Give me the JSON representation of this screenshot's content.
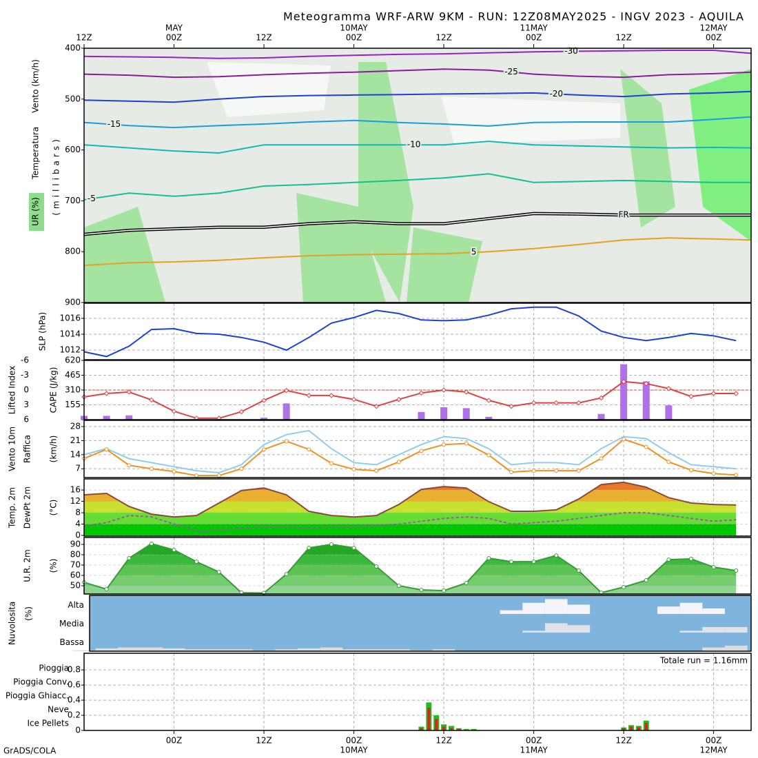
{
  "title": "Meteogramma WRF-ARW 9KM - RUN: 12Z08MAY2025 - INGV 2023 - AQUILA",
  "credit": "GrADS/COLA",
  "time_axis": {
    "xlim": [
      0,
      89
    ],
    "top_ticks": [
      {
        "value": 0,
        "label": "12Z"
      },
      {
        "value": 12,
        "label": "00Z",
        "date": "MAY"
      },
      {
        "value": 24,
        "label": "12Z"
      },
      {
        "value": 36,
        "label": "00Z",
        "date": "10MAY"
      },
      {
        "value": 48,
        "label": "12Z"
      },
      {
        "value": 60,
        "label": "00Z",
        "date": "11MAY"
      },
      {
        "value": 72,
        "label": "12Z"
      },
      {
        "value": 84,
        "label": "00Z",
        "date": "12MAY"
      }
    ],
    "bottom_ticks": [
      {
        "value": 12,
        "label": "00Z"
      },
      {
        "value": 24,
        "label": "12Z"
      },
      {
        "value": 36,
        "label": "00Z",
        "date": "10MAY"
      },
      {
        "value": 48,
        "label": "12Z"
      },
      {
        "value": 60,
        "label": "00Z",
        "date": "11MAY"
      },
      {
        "value": 72,
        "label": "12Z"
      },
      {
        "value": 84,
        "label": "00Z",
        "date": "12MAY"
      }
    ]
  },
  "chart_data": [
    {
      "type": "line",
      "ylabels": [
        "Vento (km/h)",
        "Temperatura",
        "UR (%)"
      ],
      "unit_label": "(millibars)",
      "ylim": [
        900,
        400
      ],
      "yticks": [
        400,
        500,
        600,
        700,
        800,
        900
      ],
      "grid": false,
      "x": [
        0,
        6,
        12,
        18,
        24,
        30,
        36,
        42,
        48,
        54,
        60,
        66,
        72,
        78,
        84,
        89
      ],
      "series": [
        {
          "name": "-30",
          "color": "#9a1ecc",
          "values": [
            416,
            417,
            418,
            420,
            419,
            416,
            414,
            412,
            411,
            409,
            407,
            406,
            405,
            404,
            404,
            410
          ]
        },
        {
          "name": "-25",
          "color": "#8a1a9e",
          "values": [
            451,
            453,
            457,
            456,
            452,
            449,
            447,
            444,
            441,
            443,
            451,
            455,
            457,
            452,
            450,
            447
          ]
        },
        {
          "name": "-20",
          "color": "#1e3fd6",
          "values": [
            502,
            504,
            506,
            500,
            495,
            493,
            492,
            491,
            490,
            489,
            488,
            492,
            495,
            490,
            488,
            485
          ]
        },
        {
          "name": "-15",
          "color": "#1a9be0",
          "values": [
            546,
            552,
            556,
            552,
            549,
            545,
            542,
            546,
            549,
            553,
            546,
            545,
            545,
            545,
            540,
            535
          ]
        },
        {
          "name": "-10",
          "color": "#12b8b8",
          "values": [
            590,
            596,
            602,
            606,
            590,
            590,
            590,
            590,
            590,
            583,
            590,
            592,
            594,
            596,
            595,
            596
          ]
        },
        {
          "name": "-5",
          "color": "#14c08c",
          "values": [
            698,
            685,
            691,
            685,
            671,
            668,
            664,
            660,
            655,
            647,
            664,
            662,
            660,
            662,
            664,
            664
          ]
        },
        {
          "name": "FR",
          "color": "#000000",
          "double": true,
          "values": [
            766,
            758,
            755,
            752,
            752,
            745,
            741,
            745,
            745,
            735,
            725,
            726,
            728,
            728,
            728,
            728
          ]
        },
        {
          "name": "5",
          "color": "#e8a020",
          "values": [
            827,
            822,
            820,
            817,
            812,
            808,
            806,
            805,
            804,
            800,
            794,
            786,
            777,
            773,
            775,
            777
          ]
        }
      ]
    },
    {
      "type": "line",
      "ylim": [
        1010.8,
        1017.9
      ],
      "yticks": [
        1012,
        1014,
        1016
      ],
      "grid": true,
      "x": [
        0,
        3,
        6,
        9,
        12,
        15,
        18,
        21,
        24,
        27,
        30,
        33,
        36,
        39,
        42,
        45,
        48,
        51,
        54,
        57,
        60,
        63,
        66,
        69,
        72,
        75,
        78,
        81,
        84,
        87
      ],
      "series": [
        {
          "name": "SLP (hPa)",
          "color": "#1e3fd6",
          "values": [
            1011.8,
            1011.2,
            1012.5,
            1014.6,
            1014.7,
            1014.1,
            1014.0,
            1013.6,
            1013.0,
            1012.0,
            1013.6,
            1015.4,
            1016.1,
            1017.0,
            1016.6,
            1015.8,
            1015.7,
            1015.8,
            1016.4,
            1017.2,
            1017.4,
            1017.4,
            1016.3,
            1014.4,
            1013.6,
            1013.2,
            1013.6,
            1014.1,
            1013.8,
            1013.2
          ]
        }
      ]
    },
    {
      "type": "bar_line",
      "ylim": [
        6,
        -6
      ],
      "yticks": [
        -6,
        -3,
        0,
        3,
        6
      ],
      "y2lim": [
        0,
        620
      ],
      "y2ticks": [
        155,
        310,
        465,
        620
      ],
      "li_reference": 0,
      "grid": true,
      "x": [
        0,
        3,
        6,
        9,
        12,
        15,
        18,
        21,
        24,
        27,
        30,
        33,
        36,
        39,
        42,
        45,
        48,
        51,
        54,
        57,
        60,
        63,
        66,
        69,
        72,
        75,
        78,
        81,
        84,
        87
      ],
      "series": [
        {
          "name": "Lifted Index",
          "color": "#e04040",
          "marker": "diamond",
          "values": [
            1.4,
            0.7,
            0.4,
            2.0,
            4.3,
            5.7,
            5.7,
            4.4,
            2.1,
            0.1,
            1.1,
            1.1,
            1.9,
            3.3,
            1.9,
            0.6,
            0,
            0.4,
            2.1,
            3.3,
            2.6,
            2.6,
            2.6,
            1.6,
            -1.7,
            -1.3,
            -0.3,
            1.3,
            0.7,
            0.7
          ]
        },
        {
          "name": "CAPE (J/kg)",
          "color": "#b070e8",
          "axis": "y2",
          "values": [
            40,
            40,
            45,
            0,
            0,
            0,
            0,
            0,
            20,
            170,
            0,
            0,
            0,
            0,
            0,
            80,
            130,
            120,
            30,
            0,
            0,
            0,
            0,
            60,
            580,
            400,
            150,
            0,
            0,
            0
          ]
        }
      ]
    },
    {
      "type": "line",
      "unit_label": "(km/h)",
      "ylim": [
        2.6,
        31.1
      ],
      "yticks": [
        7,
        14,
        21,
        28
      ],
      "grid": true,
      "x": [
        0,
        3,
        6,
        9,
        12,
        15,
        18,
        21,
        24,
        27,
        30,
        33,
        36,
        39,
        42,
        45,
        48,
        51,
        54,
        57,
        60,
        63,
        66,
        69,
        72,
        75,
        78,
        81,
        84,
        87
      ],
      "series": [
        {
          "name": "Raffica",
          "color": "#90ccee",
          "values": [
            14,
            17,
            12,
            10,
            8,
            6,
            5,
            9,
            19,
            24,
            26,
            17,
            10,
            9,
            14,
            19,
            23,
            22,
            17,
            9,
            10,
            10,
            9,
            17,
            23,
            22,
            15,
            9,
            8,
            7
          ]
        },
        {
          "name": "Vento 10m",
          "color": "#f09020",
          "marker": "circle",
          "values": [
            12.1,
            16.6,
            8.7,
            7.0,
            5.6,
            3.6,
            3.6,
            7.0,
            16.6,
            20.7,
            16.6,
            9.7,
            6.7,
            6.0,
            10.4,
            15.9,
            19.0,
            19.6,
            13.8,
            5.3,
            6.0,
            6.0,
            6.0,
            12.1,
            21.7,
            17.9,
            10.4,
            6.3,
            4.6,
            3.9
          ]
        }
      ]
    },
    {
      "type": "area",
      "unit_label": "(°C)",
      "ylim": [
        -0.25,
        19.9
      ],
      "yticks": [
        0,
        4,
        8,
        12,
        16
      ],
      "grid": true,
      "band_colors": [
        "#00c800",
        "#00c800",
        "#66dd33",
        "#c8e030",
        "#e8b030",
        "#e87828"
      ],
      "x": [
        0,
        3,
        6,
        9,
        12,
        15,
        18,
        21,
        24,
        27,
        30,
        33,
        36,
        39,
        42,
        45,
        48,
        51,
        54,
        57,
        60,
        63,
        66,
        69,
        72,
        75,
        78,
        81,
        84,
        87
      ],
      "series": [
        {
          "name": "Temp. 2m",
          "color": "#8a4a3a",
          "values": [
            14.3,
            14.8,
            10.2,
            7.5,
            6.5,
            7.0,
            11.4,
            15.8,
            16.7,
            14.3,
            8.5,
            7.0,
            6.5,
            7.0,
            10.9,
            16.2,
            17.2,
            16.7,
            11.9,
            8.5,
            8.5,
            9.0,
            12.8,
            17.9,
            18.7,
            17.0,
            13.3,
            11.4,
            10.9,
            10.7
          ]
        },
        {
          "name": "DewPt 2m",
          "color": "#9a5aa0",
          "dash": true,
          "values": [
            3.3,
            4.5,
            7,
            6.5,
            4,
            1.5,
            2,
            2.5,
            3,
            3,
            2.5,
            3,
            3,
            3.5,
            4,
            5,
            6,
            6.5,
            6,
            4,
            4.5,
            5,
            6,
            7,
            8,
            8,
            7,
            6,
            5,
            5.5
          ]
        }
      ]
    },
    {
      "type": "area",
      "unit_label": "(%)",
      "ylim": [
        42,
        96.7
      ],
      "yticks": [
        50,
        60,
        70,
        80,
        90
      ],
      "grid": true,
      "band_colors": [
        "#8fd48f",
        "#78cc70",
        "#5cc452",
        "#3cb83c",
        "#22a822",
        "#119911"
      ],
      "x": [
        0,
        3,
        6,
        9,
        12,
        15,
        18,
        21,
        24,
        27,
        30,
        33,
        36,
        39,
        42,
        45,
        48,
        51,
        54,
        57,
        60,
        63,
        66,
        69,
        72,
        75,
        78,
        81,
        84,
        87
      ],
      "series": [
        {
          "name": "U.R. 2m",
          "color": "#3a9a3a",
          "marker": "circle",
          "values": [
            53.3,
            46.7,
            76.7,
            90.7,
            84.7,
            73.3,
            63.3,
            43.3,
            43,
            61.3,
            86.7,
            90,
            86.7,
            68.7,
            50,
            46,
            45.3,
            52.7,
            76.7,
            73.3,
            73.3,
            79.3,
            64.7,
            43.3,
            48.7,
            55.3,
            75.3,
            76,
            68,
            64.7
          ]
        }
      ]
    },
    {
      "type": "cloud",
      "title": "Nuvolosita",
      "unit_label": "(%)",
      "x": [
        0,
        3,
        6,
        9,
        12,
        15,
        18,
        21,
        24,
        27,
        30,
        33,
        36,
        39,
        42,
        45,
        48,
        51,
        54,
        57,
        60,
        63,
        66,
        69,
        72,
        75,
        78,
        81,
        84,
        87
      ],
      "series": [
        {
          "name": "Alta",
          "color": "#f4f4fa",
          "values": [
            0,
            0,
            0,
            0,
            0,
            0,
            0,
            0,
            0,
            0,
            0,
            0,
            0,
            0,
            0,
            0,
            0,
            0,
            0,
            20,
            60,
            80,
            50,
            0,
            0,
            0,
            40,
            60,
            30,
            0
          ]
        },
        {
          "name": "Media",
          "color": "#e2e2e6",
          "values": [
            0,
            0,
            0,
            0,
            0,
            0,
            0,
            0,
            0,
            0,
            0,
            0,
            0,
            0,
            0,
            0,
            0,
            0,
            0,
            0,
            10,
            50,
            40,
            0,
            0,
            0,
            0,
            10,
            30,
            30
          ]
        },
        {
          "name": "Bassa",
          "color": "#dcdcdc",
          "values": [
            5,
            15,
            20,
            20,
            15,
            10,
            10,
            10,
            5,
            10,
            15,
            20,
            10,
            10,
            10,
            5,
            10,
            0,
            0,
            0,
            0,
            0,
            0,
            0,
            0,
            0,
            0,
            0,
            20,
            30
          ]
        }
      ]
    },
    {
      "type": "bar",
      "ylim": [
        0,
        1.02
      ],
      "yticks": [
        0,
        0.2,
        0.4,
        0.6,
        0.8
      ],
      "grid": true,
      "annotation": "Totale run = 1.16mm",
      "x": [
        45,
        46,
        47,
        48,
        49,
        50,
        51,
        52,
        72,
        73,
        74,
        75
      ],
      "series": [
        {
          "name": "Pioggia",
          "color": "#22bb22",
          "values": [
            0.05,
            0.37,
            0.2,
            0.08,
            0.06,
            0.03,
            0.02,
            0.02,
            0.04,
            0.07,
            0.06,
            0.13
          ]
        },
        {
          "name": "Pioggia Conv.",
          "color": "#e02020",
          "values": [
            0.03,
            0.3,
            0.15,
            0.05,
            0.03,
            0.02,
            0.01,
            0.01,
            0.03,
            0.05,
            0.04,
            0.1
          ]
        },
        {
          "name": "Pioggia Ghiacc.",
          "color": "#f07820"
        },
        {
          "name": "Neve",
          "color": "#2020e0"
        },
        {
          "name": "Ice Pellets",
          "color": "#20c0d0"
        }
      ]
    }
  ]
}
